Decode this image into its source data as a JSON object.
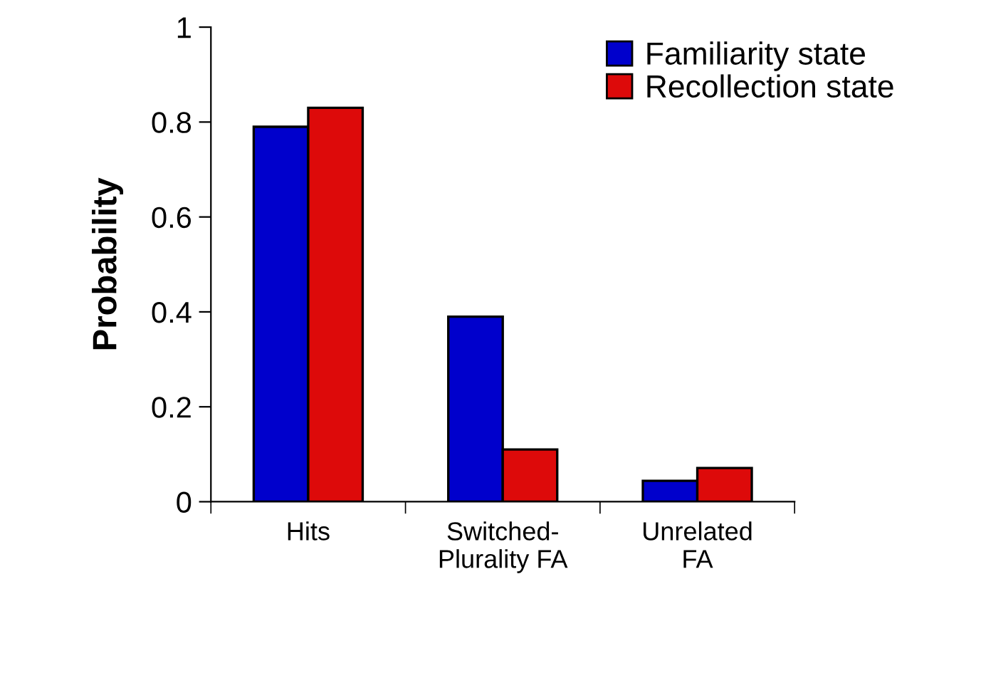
{
  "chart_data": {
    "type": "bar",
    "ylabel": "Probability",
    "categories": [
      "Hits",
      "Switched-\nPlurality FA",
      "Unrelated\nFA"
    ],
    "series": [
      {
        "name": "Familiarity state",
        "color": "#0000cc",
        "values": [
          0.79,
          0.39,
          0.044
        ]
      },
      {
        "name": "Recollection state",
        "color": "#dd0a0a",
        "values": [
          0.83,
          0.11,
          0.071
        ]
      }
    ],
    "ylim": [
      0,
      1
    ],
    "yticks": [
      0,
      0.2,
      0.4,
      0.6,
      0.8,
      1
    ],
    "grid": false,
    "legend": "top right"
  }
}
